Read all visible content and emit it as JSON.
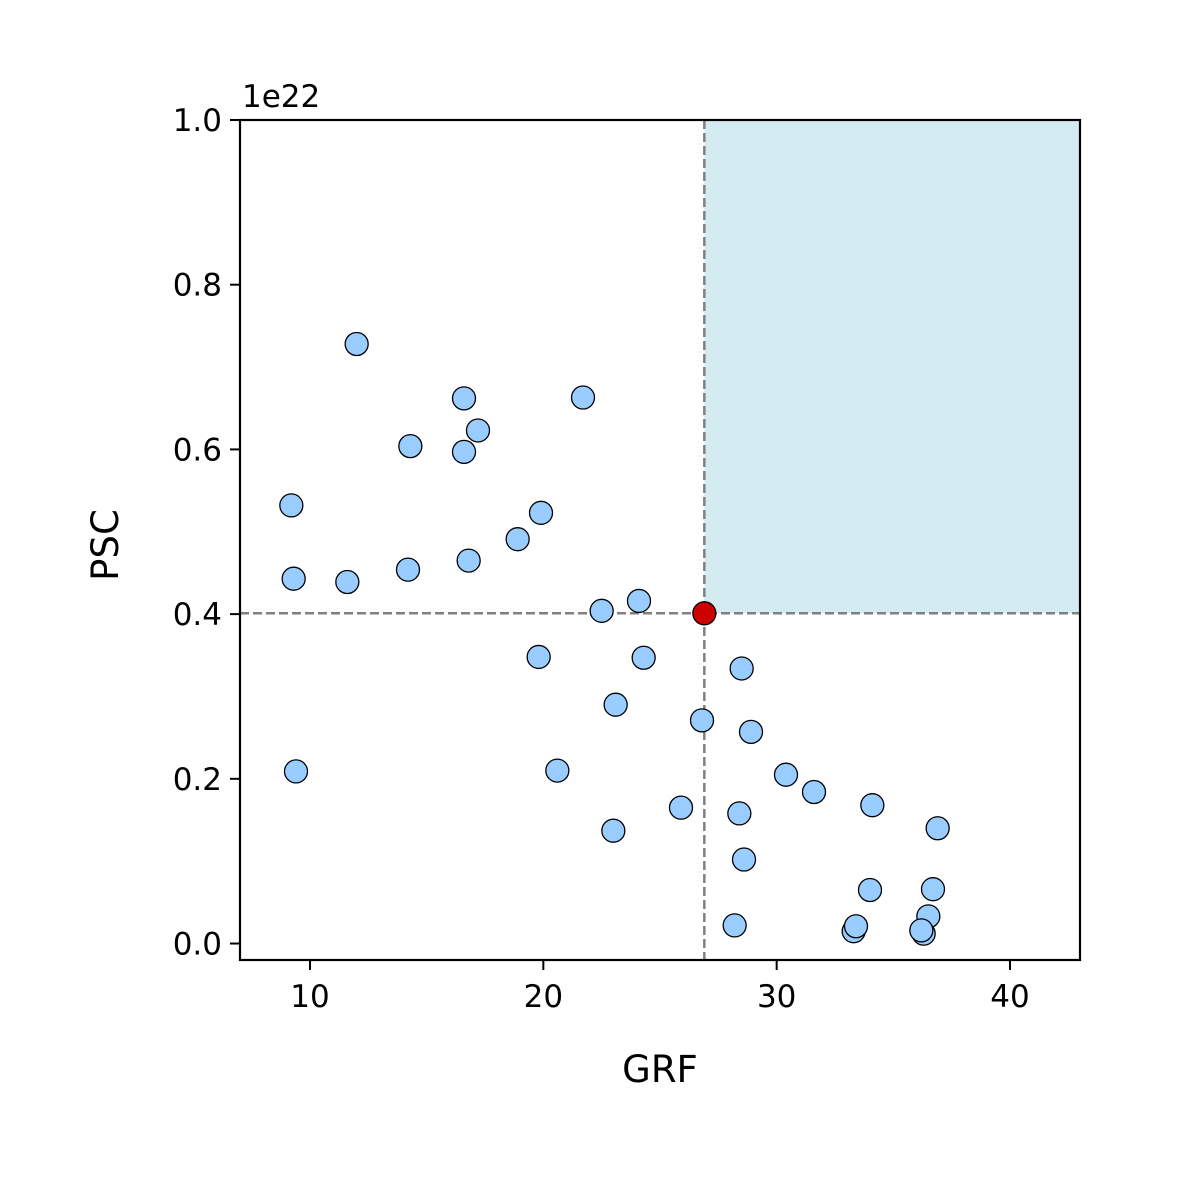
{
  "chart_data": {
    "type": "scatter",
    "title": "",
    "xlabel": "GRF",
    "ylabel": "PSC",
    "y_scale_label": "1e22",
    "xlim": [
      7,
      43
    ],
    "ylim": [
      -0.02,
      1.0
    ],
    "x_ticks": [
      10,
      20,
      30,
      40
    ],
    "y_ticks": [
      0.0,
      0.2,
      0.4,
      0.6,
      0.8,
      1.0
    ],
    "x_tick_labels": [
      "10",
      "20",
      "30",
      "40"
    ],
    "y_tick_labels": [
      "0.0",
      "0.2",
      "0.4",
      "0.6",
      "0.8",
      "1.0"
    ],
    "grid": false,
    "reference_point": {
      "x": 26.9,
      "y": 0.401
    },
    "shaded_region": {
      "x": [
        26.9,
        43
      ],
      "y": [
        0.401,
        1.0
      ]
    },
    "colors": {
      "points_fill": "#99ccff",
      "points_edge": "#000000",
      "reference_fill": "#cc0000",
      "shade": "#d4ebf1",
      "dashed_lines": "#808080"
    },
    "points": [
      {
        "x": 12.0,
        "y": 0.728
      },
      {
        "x": 16.6,
        "y": 0.662
      },
      {
        "x": 21.7,
        "y": 0.663
      },
      {
        "x": 17.2,
        "y": 0.623
      },
      {
        "x": 14.3,
        "y": 0.604
      },
      {
        "x": 16.6,
        "y": 0.597
      },
      {
        "x": 9.2,
        "y": 0.532
      },
      {
        "x": 19.9,
        "y": 0.523
      },
      {
        "x": 18.9,
        "y": 0.491
      },
      {
        "x": 16.8,
        "y": 0.465
      },
      {
        "x": 14.2,
        "y": 0.454
      },
      {
        "x": 9.3,
        "y": 0.443
      },
      {
        "x": 11.6,
        "y": 0.439
      },
      {
        "x": 24.1,
        "y": 0.416
      },
      {
        "x": 22.5,
        "y": 0.404
      },
      {
        "x": 19.8,
        "y": 0.348
      },
      {
        "x": 24.3,
        "y": 0.347
      },
      {
        "x": 28.5,
        "y": 0.334
      },
      {
        "x": 23.1,
        "y": 0.29
      },
      {
        "x": 26.8,
        "y": 0.271
      },
      {
        "x": 28.9,
        "y": 0.257
      },
      {
        "x": 9.4,
        "y": 0.209
      },
      {
        "x": 20.6,
        "y": 0.21
      },
      {
        "x": 30.4,
        "y": 0.205
      },
      {
        "x": 31.6,
        "y": 0.184
      },
      {
        "x": 34.1,
        "y": 0.168
      },
      {
        "x": 25.9,
        "y": 0.165
      },
      {
        "x": 28.4,
        "y": 0.158
      },
      {
        "x": 36.9,
        "y": 0.14
      },
      {
        "x": 23.0,
        "y": 0.137
      },
      {
        "x": 28.6,
        "y": 0.102
      },
      {
        "x": 34.0,
        "y": 0.065
      },
      {
        "x": 36.7,
        "y": 0.066
      },
      {
        "x": 36.5,
        "y": 0.033
      },
      {
        "x": 28.2,
        "y": 0.022
      },
      {
        "x": 33.3,
        "y": 0.015
      },
      {
        "x": 33.4,
        "y": 0.021
      },
      {
        "x": 36.3,
        "y": 0.012
      },
      {
        "x": 36.2,
        "y": 0.016
      }
    ]
  }
}
